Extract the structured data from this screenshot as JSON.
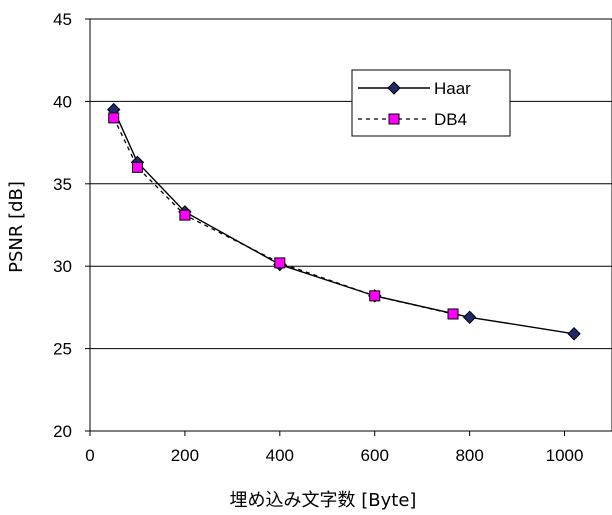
{
  "chart_data": {
    "type": "line",
    "title": "",
    "xlabel": "埋め込み文字数 [Byte]",
    "ylabel": "PSNR [dB]",
    "xlim": [
      0,
      1100
    ],
    "ylim": [
      20,
      45
    ],
    "xticks": [
      0,
      200,
      400,
      600,
      800,
      1000
    ],
    "yticks": [
      20,
      25,
      30,
      35,
      40,
      45
    ],
    "grid": "horizontal major gridlines",
    "legend_position": "top-right",
    "series": [
      {
        "name": "Haar",
        "line_style": "solid",
        "marker": "diamond",
        "marker_color": "#1f2a6b",
        "points": [
          {
            "x": 50,
            "y": 39.5
          },
          {
            "x": 100,
            "y": 36.3
          },
          {
            "x": 200,
            "y": 33.3
          },
          {
            "x": 400,
            "y": 30.1
          },
          {
            "x": 600,
            "y": 28.2
          },
          {
            "x": 800,
            "y": 26.9
          },
          {
            "x": 1020,
            "y": 25.9
          }
        ]
      },
      {
        "name": "DB4",
        "line_style": "dotted",
        "marker": "square",
        "marker_color": "#ff00ff",
        "points": [
          {
            "x": 50,
            "y": 39.0
          },
          {
            "x": 100,
            "y": 36.0
          },
          {
            "x": 200,
            "y": 33.1
          },
          {
            "x": 400,
            "y": 30.2
          },
          {
            "x": 600,
            "y": 28.2
          },
          {
            "x": 765,
            "y": 27.1
          }
        ]
      }
    ]
  }
}
